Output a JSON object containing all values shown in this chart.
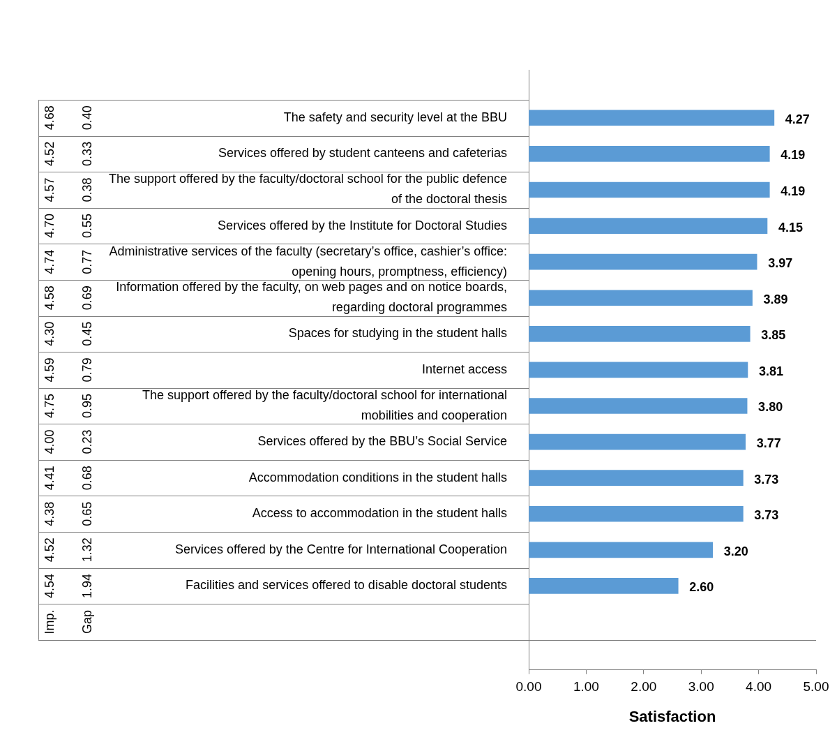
{
  "chart_data": {
    "type": "bar",
    "orientation": "horizontal",
    "xlabel": "Satisfaction",
    "categories": [
      "The safety and security level at the BBU",
      "Services offered by student canteens and cafeterias",
      "The support offered by the faculty/doctoral school for the public defence of the doctoral thesis",
      "Services offered by the Institute for Doctoral Studies",
      "Administrative services of the faculty (secretary’s office, cashier’s office: opening hours, promptness, efficiency)",
      "Information offered by the faculty, on web pages and on notice boards, regarding doctoral programmes",
      "Spaces for studying in the student halls",
      "Internet access",
      "The support offered by the faculty/doctoral school for international mobilities and cooperation",
      "Services offered by the BBU’s Social Service",
      "Accommodation conditions in the student halls",
      "Access to accommodation in the student halls",
      "Services offered by the Centre for International Cooperation",
      "Facilities and services offered to disable doctoral students"
    ],
    "values": [
      4.27,
      4.19,
      4.19,
      4.15,
      3.97,
      3.89,
      3.85,
      3.81,
      3.8,
      3.77,
      3.73,
      3.73,
      3.2,
      2.6
    ],
    "value_labels": [
      "4.27",
      "4.19",
      "4.19",
      "4.15",
      "3.97",
      "3.89",
      "3.85",
      "3.81",
      "3.80",
      "3.77",
      "3.73",
      "3.73",
      "3.20",
      "2.60"
    ],
    "color": "#5b9bd5",
    "xlim": [
      0,
      5
    ],
    "xticks": [
      {
        "value": 0,
        "label": "0.00"
      },
      {
        "value": 1,
        "label": "1.00"
      },
      {
        "value": 2,
        "label": "2.00"
      },
      {
        "value": 3,
        "label": "3.00"
      },
      {
        "value": 4,
        "label": "4.00"
      },
      {
        "value": 5,
        "label": "5.00"
      }
    ],
    "annotations": [
      "Imp.",
      "Gap",
      "4.68",
      "0.40",
      "4.52",
      "0.33",
      "4.57",
      "0.38",
      "4.70",
      "0.55",
      "4.74",
      "0.77",
      "4.58",
      "0.69",
      "4.30",
      "0.45",
      "4.59",
      "0.79",
      "4.75",
      "0.95",
      "4.00",
      "0.23",
      "4.41",
      "0.68",
      "4.38",
      "0.65",
      "4.52",
      "1.32",
      "4.54",
      "1.94"
    ],
    "grid": false,
    "legend": false
  }
}
